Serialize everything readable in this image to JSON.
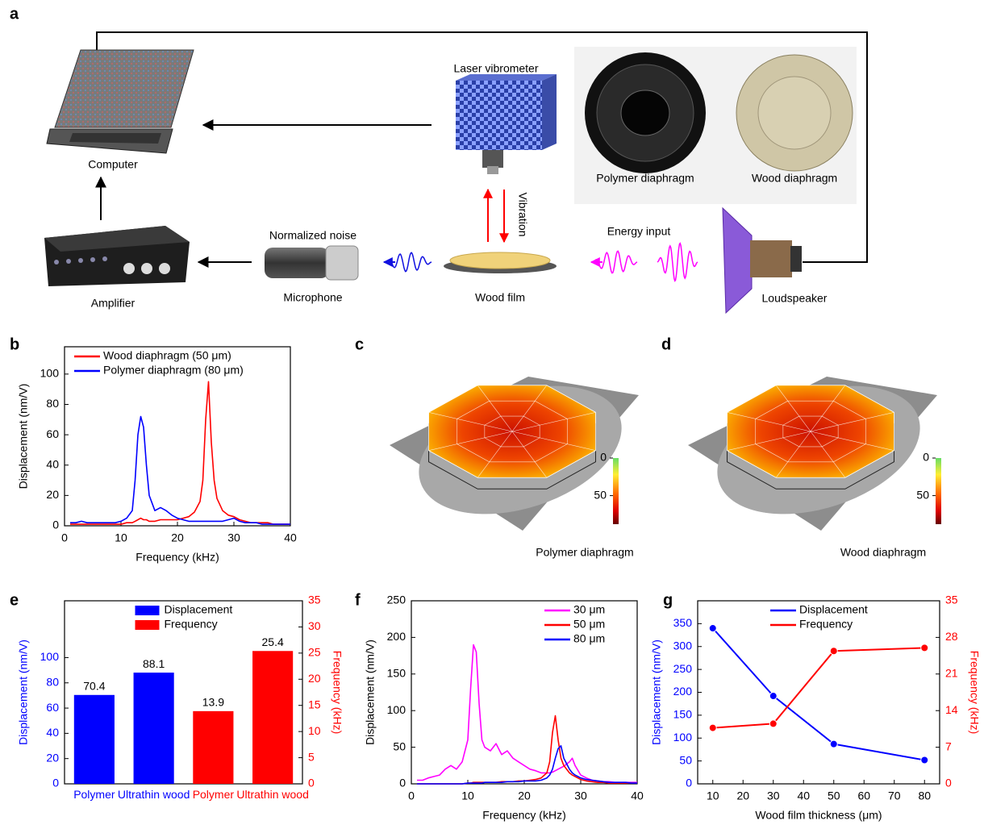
{
  "figure": {
    "panel_a": {
      "label": "a",
      "laser_vibrometer": "Laser vibrometer",
      "computer": "Computer",
      "polymer_diaphragm": "Polymer diaphragm",
      "wood_diaphragm": "Wood diaphragm",
      "vibration": "Vibration",
      "energy_input": "Energy input",
      "normalized_noise": "Normalized noise",
      "microphone": "Microphone",
      "wood_film": "Wood film",
      "amplifier": "Amplifier",
      "loudspeaker": "Loudspeaker"
    }
  },
  "chart_data": [
    {
      "label": "b",
      "type": "line",
      "xlabel": "Frequency (kHz)",
      "ylabel": "Displacement (nm/V)",
      "x": [
        1,
        2,
        3,
        4,
        5,
        6,
        7,
        8,
        9,
        10,
        11,
        12,
        12.5,
        13,
        13.5,
        14,
        14.5,
        15,
        16,
        17,
        18,
        19,
        20,
        21,
        22,
        23,
        24,
        24.5,
        25,
        25.5,
        26,
        26.5,
        27,
        28,
        29,
        30,
        31,
        32,
        33,
        34,
        35,
        36,
        37,
        38,
        39,
        40
      ],
      "series": [
        {
          "name": "Wood diaphragm (50 μm)",
          "color": "#ff0000",
          "values": [
            1,
            1,
            1,
            1,
            1,
            1,
            1,
            1,
            1,
            1,
            2,
            2,
            3,
            4,
            5,
            4,
            4,
            3,
            3,
            4,
            4,
            4,
            4,
            5,
            6,
            9,
            16,
            30,
            70,
            95,
            55,
            30,
            18,
            10,
            7,
            6,
            4,
            3,
            2,
            2,
            2,
            2,
            1,
            1,
            1,
            1
          ]
        },
        {
          "name": "Polymer diaphragm (80 μm)",
          "color": "#0000ff",
          "values": [
            2,
            2,
            3,
            2,
            2,
            2,
            2,
            2,
            2,
            3,
            5,
            10,
            30,
            60,
            72,
            65,
            40,
            20,
            10,
            12,
            10,
            7,
            5,
            4,
            3,
            3,
            3,
            3,
            3,
            3,
            3,
            3,
            3,
            3,
            4,
            5,
            3,
            2,
            2,
            2,
            1,
            1,
            1,
            1,
            1,
            1
          ]
        }
      ],
      "xlim": [
        0,
        40
      ],
      "xticks": [
        0,
        10,
        20,
        30,
        40
      ],
      "ylim": [
        0,
        118
      ],
      "yticks": [
        0,
        20,
        40,
        60,
        80,
        100
      ],
      "legend": "upper left"
    },
    {
      "label": "c",
      "type": "surface",
      "caption": "Polymer diaphragm",
      "clim": [
        0,
        88
      ],
      "cticks": [
        0,
        50
      ]
    },
    {
      "label": "d",
      "type": "surface",
      "caption": "Wood diaphragm",
      "clim": [
        0,
        88
      ],
      "cticks": [
        0,
        50
      ]
    },
    {
      "label": "e",
      "type": "bar",
      "ylabel": "Displacement (nm/V)",
      "y2label": "Frequency (kHz)",
      "categories": [
        "Polymer",
        "Ultrathin wood",
        "Polymer",
        "Ultrathin wood"
      ],
      "series": [
        {
          "name": "Displacement",
          "color": "#0000ff",
          "values": [
            70.4,
            88.1,
            null,
            null
          ]
        },
        {
          "name": "Frequency",
          "color": "#ff0000",
          "axis": "y2",
          "values": [
            null,
            null,
            13.9,
            25.4
          ]
        }
      ],
      "ylim": [
        0,
        145
      ],
      "yticks": [
        0,
        20,
        40,
        60,
        80,
        100
      ],
      "y2lim": [
        0,
        35
      ],
      "y2ticks": [
        0,
        5,
        10,
        15,
        20,
        25,
        30,
        35
      ],
      "legend": "upper center"
    },
    {
      "label": "f",
      "type": "line",
      "xlabel": "Frequency (kHz)",
      "ylabel": "Displacement (nm/V)",
      "x": [
        1,
        2,
        3,
        4,
        5,
        6,
        7,
        8,
        9,
        10,
        10.5,
        11,
        11.5,
        12,
        12.5,
        13,
        14,
        15,
        16,
        17,
        18,
        19,
        20,
        21,
        22,
        23,
        24,
        24.5,
        25,
        25.5,
        26,
        26.5,
        27,
        28,
        28.5,
        29,
        30,
        31,
        32,
        33,
        34,
        35,
        36,
        37,
        38,
        39,
        40
      ],
      "series": [
        {
          "name": "30 μm",
          "color": "#ff00ff",
          "values": [
            5,
            5,
            8,
            10,
            12,
            20,
            25,
            20,
            30,
            60,
            130,
            190,
            180,
            110,
            60,
            50,
            45,
            55,
            40,
            45,
            35,
            30,
            25,
            20,
            18,
            15,
            15,
            15,
            16,
            18,
            20,
            22,
            24,
            30,
            35,
            25,
            12,
            8,
            5,
            4,
            3,
            3,
            2,
            2,
            2,
            2,
            2
          ]
        },
        {
          "name": "50 μm",
          "color": "#ff0000",
          "values": [
            0,
            0,
            0,
            0,
            0,
            0,
            0,
            0,
            0,
            1,
            1,
            2,
            2,
            2,
            2,
            2,
            2,
            2,
            3,
            3,
            3,
            4,
            4,
            5,
            6,
            8,
            15,
            30,
            70,
            93,
            60,
            35,
            25,
            15,
            12,
            10,
            6,
            4,
            3,
            2,
            2,
            1,
            1,
            1,
            1,
            1,
            1
          ]
        },
        {
          "name": "80 μm",
          "color": "#0000ff",
          "values": [
            0,
            0,
            0,
            0,
            0,
            0,
            0,
            0,
            0,
            1,
            1,
            1,
            1,
            1,
            1,
            2,
            2,
            2,
            2,
            3,
            3,
            3,
            4,
            4,
            4,
            5,
            8,
            12,
            20,
            35,
            48,
            52,
            35,
            20,
            15,
            12,
            8,
            6,
            5,
            4,
            3,
            2,
            2,
            2,
            2,
            1,
            1
          ]
        }
      ],
      "xlim": [
        0,
        40
      ],
      "xticks": [
        0,
        10,
        20,
        30,
        40
      ],
      "ylim": [
        0,
        250
      ],
      "yticks": [
        0,
        50,
        100,
        150,
        200,
        250
      ],
      "legend": "upper right"
    },
    {
      "label": "g",
      "type": "line",
      "markers": true,
      "xlabel": "Wood film thickness (μm)",
      "ylabel": "Displacement (nm/V)",
      "y2label": "Frequency (kHz)",
      "x": [
        10,
        30,
        50,
        80
      ],
      "series": [
        {
          "name": "Displacement",
          "color": "#0000ff",
          "values": [
            340,
            192,
            87,
            52
          ]
        },
        {
          "name": "Frequency",
          "color": "#ff0000",
          "axis": "y2",
          "values": [
            10.7,
            11.5,
            25.4,
            26
          ]
        }
      ],
      "xlim": [
        5,
        85
      ],
      "xticks": [
        10,
        20,
        30,
        40,
        50,
        60,
        70,
        80
      ],
      "ylim": [
        0,
        400
      ],
      "yticks": [
        0,
        50,
        100,
        150,
        200,
        250,
        300,
        350
      ],
      "y2lim": [
        0,
        35
      ],
      "y2ticks": [
        0,
        7,
        14,
        21,
        28,
        35
      ],
      "legend": "upper center"
    }
  ]
}
